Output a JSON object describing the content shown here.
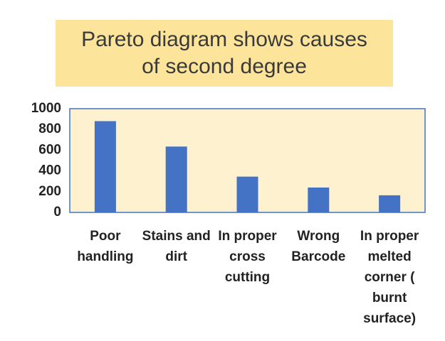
{
  "chart_data": {
    "type": "bar",
    "title": "Pareto diagram shows causes of second degree",
    "categories": [
      "Poor handling",
      "Stains and dirt",
      "In proper cross cutting",
      "Wrong Barcode",
      "In proper melted corner ( burnt surface)"
    ],
    "values": [
      880,
      635,
      345,
      240,
      165
    ],
    "color": "#4472c4",
    "ylim": [
      0,
      1000
    ],
    "yticks": [
      0,
      200,
      400,
      600,
      800,
      1000
    ],
    "grid": false
  }
}
